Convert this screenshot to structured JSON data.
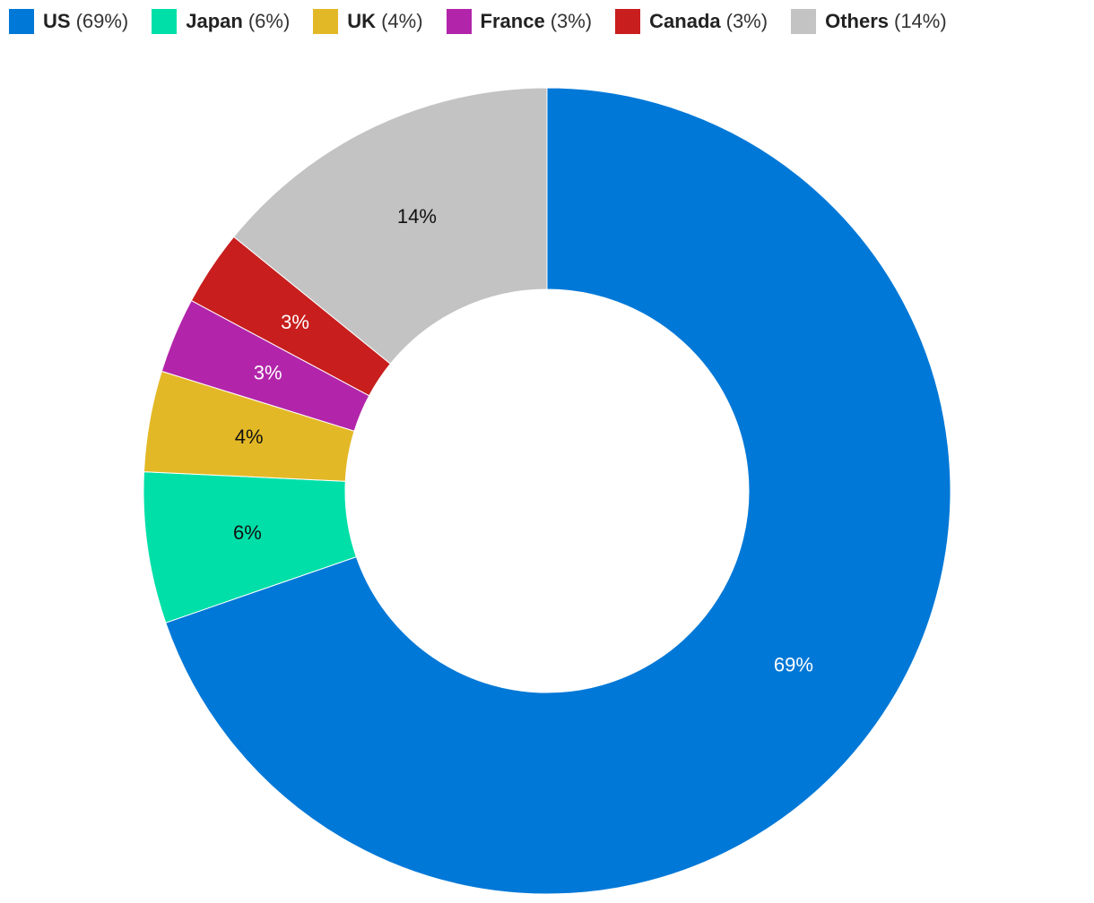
{
  "chart_data": {
    "type": "donut",
    "categories": [
      "US",
      "Japan",
      "UK",
      "France",
      "Canada",
      "Others"
    ],
    "values": [
      69,
      6,
      4,
      3,
      3,
      14
    ],
    "value_labels": [
      "69%",
      "6%",
      "4%",
      "3%",
      "3%",
      "14%"
    ],
    "legend_labels": [
      "(69%)",
      "(6%)",
      "(4%)",
      "(3%)",
      "(3%)",
      "(14%)"
    ],
    "colors": [
      "#0078d7",
      "#00dfa8",
      "#e3b826",
      "#b225aa",
      "#c81e1e",
      "#c3c3c3"
    ],
    "legend": "top-left"
  }
}
